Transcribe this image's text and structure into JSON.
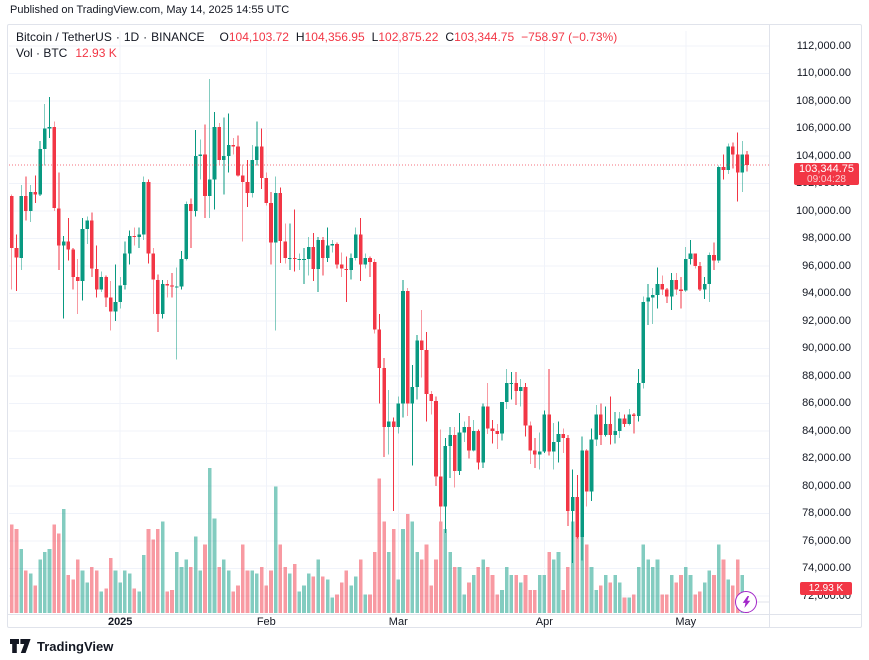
{
  "published_bar": {
    "text": "Published on TradingView.com, May 14, 2025 14:55 UTC"
  },
  "legend": {
    "symbol": "Bitcoin / TetherUS",
    "separator": "·",
    "interval": "1D",
    "exchange": "BINANCE",
    "ohlc": {
      "o": {
        "key": "O",
        "value": "104,103.72"
      },
      "h": {
        "key": "H",
        "value": "104,356.95"
      },
      "l": {
        "key": "L",
        "value": "102,875.22"
      },
      "c": {
        "key": "C",
        "value": "103,344.75"
      }
    },
    "change": "−758.97 (−0.73%)",
    "volume": {
      "label": "Vol · BTC",
      "value": "12.93 K"
    }
  },
  "price_badge": {
    "price": "103,344.75",
    "countdown": "09:04:28"
  },
  "volume_badge": {
    "value": "12.93 K"
  },
  "price_scale": {
    "labels": [
      "112,000.00",
      "110,000.00",
      "108,000.00",
      "106,000.00",
      "104,000.00",
      "102,000.00",
      "100,000.00",
      "98,000.00",
      "96,000.00",
      "94,000.00",
      "92,000.00",
      "90,000.00",
      "88,000.00",
      "86,000.00",
      "84,000.00",
      "82,000.00",
      "80,000.00",
      "78,000.00",
      "76,000.00",
      "74,000.00",
      "72,000.00"
    ]
  },
  "time_scale": {
    "ticks": [
      {
        "index": 23,
        "label": "2025",
        "bold": true
      },
      {
        "index": 54,
        "label": "Feb",
        "bold": false
      },
      {
        "index": 82,
        "label": "Mar",
        "bold": false
      },
      {
        "index": 113,
        "label": "Apr",
        "bold": false
      },
      {
        "index": 143,
        "label": "May",
        "bold": false
      }
    ]
  },
  "footer": {
    "brand": "TradingView"
  },
  "colors": {
    "up": "#089981",
    "down": "#f23645",
    "vol_up": "rgba(8,153,129,0.5)",
    "vol_down": "rgba(242,54,69,0.5)",
    "grid": "#f0f3fa",
    "last_price_line": "rgba(242,54,69,0.7)",
    "badge": "#f23645",
    "text": "#131722",
    "border": "#e0e3eb",
    "flash": "#a227c9"
  },
  "chart_data": {
    "type": "candlestick_with_volume",
    "title": "Bitcoin / TetherUS",
    "exchange": "BINANCE",
    "interval": "1D",
    "start_date": "2024-12-09",
    "end_date": "2025-05-14",
    "price_axis": {
      "min": 72000,
      "max": 112000,
      "step": 2000
    },
    "price_unit": "thousands of USDT",
    "volume_unit": "K BTC",
    "last_close": 103344.75,
    "current_ohlc": {
      "open": 104103.72,
      "high": 104356.95,
      "low": 102875.22,
      "close": 103344.75,
      "change": -758.97,
      "change_pct": -0.73
    },
    "current_volume_k": 12.93,
    "candles": [
      [
        101.1,
        101.2,
        94.3,
        97.3
      ],
      [
        97.3,
        98.3,
        94.2,
        96.6
      ],
      [
        96.6,
        101.9,
        95.7,
        101.1
      ],
      [
        101.1,
        102.5,
        99.3,
        100.0
      ],
      [
        100.0,
        101.9,
        99.2,
        101.4
      ],
      [
        101.4,
        102.6,
        100.6,
        101.2
      ],
      [
        101.2,
        105.1,
        101.1,
        104.5
      ],
      [
        104.5,
        107.8,
        103.3,
        106.0
      ],
      [
        106.0,
        108.3,
        105.3,
        106.1
      ],
      [
        106.1,
        106.5,
        100.0,
        100.2
      ],
      [
        100.2,
        102.8,
        95.7,
        97.5
      ],
      [
        97.5,
        98.2,
        92.2,
        97.8
      ],
      [
        97.8,
        99.5,
        96.4,
        97.2
      ],
      [
        97.2,
        97.3,
        94.3,
        95.2
      ],
      [
        95.2,
        96.5,
        92.5,
        94.9
      ],
      [
        94.9,
        99.5,
        93.5,
        98.7
      ],
      [
        98.7,
        99.6,
        97.6,
        99.3
      ],
      [
        99.3,
        99.9,
        95.2,
        95.8
      ],
      [
        95.8,
        97.5,
        93.7,
        94.3
      ],
      [
        94.3,
        95.6,
        94.1,
        95.2
      ],
      [
        95.2,
        95.3,
        93.0,
        93.7
      ],
      [
        93.7,
        94.9,
        91.3,
        92.7
      ],
      [
        92.7,
        96.1,
        92.0,
        93.4
      ],
      [
        93.4,
        95.2,
        92.9,
        94.6
      ],
      [
        94.6,
        97.8,
        94.3,
        96.9
      ],
      [
        96.9,
        98.6,
        96.1,
        98.2
      ],
      [
        98.2,
        98.8,
        97.5,
        98.1
      ],
      [
        98.1,
        98.8,
        97.3,
        98.3
      ],
      [
        98.3,
        102.5,
        97.9,
        102.1
      ],
      [
        102.1,
        102.3,
        96.2,
        96.9
      ],
      [
        96.9,
        97.3,
        92.5,
        95.0
      ],
      [
        95.0,
        95.4,
        91.2,
        92.5
      ],
      [
        92.5,
        95.0,
        92.2,
        94.7
      ],
      [
        94.7,
        95.0,
        93.7,
        94.6
      ],
      [
        94.6,
        95.5,
        93.7,
        94.5
      ],
      [
        94.5,
        95.9,
        89.2,
        94.5
      ],
      [
        94.5,
        97.1,
        94.3,
        96.5
      ],
      [
        96.5,
        100.7,
        96.4,
        100.5
      ],
      [
        100.5,
        100.9,
        97.3,
        100.0
      ],
      [
        100.0,
        105.9,
        99.6,
        104.0
      ],
      [
        104.0,
        105.2,
        102.3,
        104.1
      ],
      [
        104.1,
        106.3,
        99.5,
        101.1
      ],
      [
        101.1,
        109.6,
        99.5,
        102.3
      ],
      [
        102.3,
        107.2,
        100.1,
        106.1
      ],
      [
        106.1,
        106.4,
        103.4,
        103.7
      ],
      [
        103.7,
        106.8,
        101.2,
        104.0
      ],
      [
        104.0,
        107.1,
        102.8,
        104.8
      ],
      [
        104.8,
        105.3,
        104.1,
        104.7
      ],
      [
        104.7,
        105.5,
        102.5,
        102.6
      ],
      [
        102.6,
        103.4,
        97.8,
        102.1
      ],
      [
        102.1,
        103.7,
        100.3,
        101.3
      ],
      [
        101.3,
        104.8,
        101.0,
        103.7
      ],
      [
        103.7,
        106.5,
        103.3,
        104.7
      ],
      [
        104.7,
        106.0,
        101.6,
        102.4
      ],
      [
        102.4,
        102.8,
        100.4,
        100.6
      ],
      [
        100.6,
        101.4,
        96.1,
        97.7
      ],
      [
        97.7,
        102.5,
        91.3,
        101.3
      ],
      [
        101.3,
        101.7,
        96.2,
        97.8
      ],
      [
        97.8,
        99.1,
        96.2,
        96.6
      ],
      [
        96.6,
        99.1,
        95.7,
        96.6
      ],
      [
        96.6,
        100.1,
        95.6,
        96.5
      ],
      [
        96.5,
        96.9,
        95.7,
        96.5
      ],
      [
        96.5,
        97.3,
        94.7,
        96.5
      ],
      [
        96.5,
        98.1,
        95.3,
        97.4
      ],
      [
        97.4,
        98.4,
        94.9,
        95.8
      ],
      [
        95.8,
        98.1,
        94.1,
        97.9
      ],
      [
        97.9,
        98.1,
        95.3,
        96.6
      ],
      [
        96.6,
        98.8,
        96.3,
        97.5
      ],
      [
        97.5,
        97.9,
        97.0,
        97.6
      ],
      [
        97.6,
        97.7,
        95.8,
        96.1
      ],
      [
        96.1,
        97.0,
        95.2,
        95.8
      ],
      [
        95.8,
        96.7,
        93.4,
        95.7
      ],
      [
        95.7,
        96.9,
        95.0,
        96.6
      ],
      [
        96.6,
        98.8,
        96.4,
        98.3
      ],
      [
        98.3,
        99.5,
        94.9,
        96.1
      ],
      [
        96.1,
        96.9,
        95.8,
        96.6
      ],
      [
        96.6,
        96.7,
        95.2,
        96.3
      ],
      [
        96.3,
        96.5,
        91.1,
        91.4
      ],
      [
        91.4,
        92.5,
        86.0,
        88.6
      ],
      [
        88.6,
        89.3,
        82.1,
        84.3
      ],
      [
        84.3,
        87.0,
        82.3,
        84.7
      ],
      [
        84.7,
        85.0,
        78.2,
        84.3
      ],
      [
        84.3,
        86.5,
        83.8,
        86.0
      ],
      [
        86.0,
        95.0,
        85.0,
        94.2
      ],
      [
        94.2,
        94.4,
        85.1,
        86.0
      ],
      [
        86.0,
        88.8,
        81.5,
        87.2
      ],
      [
        87.2,
        91.0,
        86.3,
        90.6
      ],
      [
        90.6,
        92.8,
        87.9,
        89.9
      ],
      [
        89.9,
        91.2,
        84.7,
        86.7
      ],
      [
        86.7,
        86.9,
        85.2,
        86.2
      ],
      [
        86.2,
        86.5,
        80.0,
        80.7
      ],
      [
        80.7,
        84.1,
        77.4,
        78.5
      ],
      [
        78.5,
        83.5,
        76.6,
        82.9
      ],
      [
        82.9,
        84.3,
        80.6,
        83.7
      ],
      [
        83.7,
        84.3,
        79.9,
        81.1
      ],
      [
        81.1,
        85.3,
        80.8,
        83.9
      ],
      [
        83.9,
        84.7,
        83.2,
        84.3
      ],
      [
        84.3,
        85.1,
        82.0,
        82.6
      ],
      [
        82.6,
        84.8,
        82.5,
        84.0
      ],
      [
        84.0,
        84.1,
        81.2,
        81.7
      ],
      [
        81.7,
        86.0,
        81.3,
        85.8
      ],
      [
        85.8,
        87.5,
        83.8,
        84.2
      ],
      [
        84.2,
        84.8,
        83.1,
        84.0
      ],
      [
        84.0,
        84.5,
        82.7,
        83.8
      ],
      [
        83.8,
        86.1,
        83.3,
        86.1
      ],
      [
        86.1,
        88.5,
        85.6,
        87.5
      ],
      [
        87.5,
        88.3,
        86.3,
        87.5
      ],
      [
        87.5,
        88.3,
        85.9,
        86.9
      ],
      [
        86.9,
        87.8,
        85.8,
        87.2
      ],
      [
        87.2,
        87.5,
        83.6,
        84.4
      ],
      [
        84.4,
        84.7,
        81.6,
        82.6
      ],
      [
        82.6,
        83.5,
        81.3,
        82.3
      ],
      [
        82.3,
        83.9,
        81.2,
        82.5
      ],
      [
        82.5,
        85.5,
        82.4,
        85.2
      ],
      [
        85.2,
        88.5,
        82.2,
        82.5
      ],
      [
        82.5,
        84.6,
        81.2,
        83.2
      ],
      [
        83.2,
        84.7,
        81.7,
        83.8
      ],
      [
        83.8,
        84.2,
        82.4,
        83.5
      ],
      [
        83.5,
        83.7,
        77.1,
        78.2
      ],
      [
        78.2,
        81.2,
        74.4,
        79.2
      ],
      [
        79.2,
        80.8,
        76.2,
        76.3
      ],
      [
        76.3,
        83.6,
        74.6,
        82.6
      ],
      [
        82.6,
        82.7,
        78.5,
        79.6
      ],
      [
        79.6,
        84.2,
        78.9,
        83.4
      ],
      [
        83.4,
        85.9,
        82.9,
        85.2
      ],
      [
        85.2,
        86.0,
        83.0,
        83.7
      ],
      [
        83.7,
        85.8,
        83.6,
        84.5
      ],
      [
        84.5,
        86.5,
        83.0,
        83.7
      ],
      [
        83.7,
        85.4,
        83.1,
        84.0
      ],
      [
        84.0,
        85.4,
        83.5,
        84.9
      ],
      [
        84.9,
        85.2,
        84.3,
        84.5
      ],
      [
        84.5,
        85.6,
        84.4,
        85.2
      ],
      [
        85.2,
        85.3,
        83.8,
        85.1
      ],
      [
        85.1,
        88.5,
        84.7,
        87.5
      ],
      [
        87.5,
        93.8,
        87.1,
        93.4
      ],
      [
        93.4,
        94.7,
        91.7,
        93.7
      ],
      [
        93.7,
        94.4,
        91.8,
        93.9
      ],
      [
        93.9,
        95.9,
        92.9,
        94.7
      ],
      [
        94.7,
        95.3,
        93.9,
        94.3
      ],
      [
        94.3,
        94.4,
        93.3,
        93.8
      ],
      [
        93.8,
        95.5,
        92.8,
        95.0
      ],
      [
        95.0,
        95.5,
        93.9,
        94.3
      ],
      [
        94.3,
        95.2,
        92.9,
        94.2
      ],
      [
        94.2,
        97.4,
        94.1,
        96.5
      ],
      [
        96.5,
        97.9,
        96.1,
        96.9
      ],
      [
        96.9,
        96.9,
        95.8,
        96.0
      ],
      [
        96.0,
        96.3,
        94.2,
        94.3
      ],
      [
        94.3,
        95.2,
        93.6,
        94.7
      ],
      [
        94.7,
        97.0,
        93.4,
        96.8
      ],
      [
        96.8,
        97.7,
        95.7,
        96.4
      ],
      [
        96.4,
        103.3,
        96.2,
        103.2
      ],
      [
        103.2,
        104.1,
        102.3,
        103.0
      ],
      [
        103.0,
        104.9,
        102.7,
        104.7
      ],
      [
        104.7,
        105.0,
        103.1,
        104.1
      ],
      [
        104.1,
        105.7,
        100.7,
        102.8
      ],
      [
        102.8,
        105.1,
        101.4,
        104.1
      ],
      [
        104.104,
        104.357,
        102.875,
        103.345
      ]
    ],
    "volumes_k_btc": [
      58,
      55,
      42,
      28,
      26,
      18,
      35,
      40,
      42,
      58,
      52,
      68,
      25,
      22,
      35,
      28,
      20,
      30,
      28,
      14,
      16,
      36,
      28,
      20,
      28,
      26,
      16,
      14,
      38,
      55,
      48,
      55,
      60,
      14,
      15,
      40,
      30,
      35,
      30,
      50,
      28,
      45,
      95,
      62,
      30,
      35,
      28,
      14,
      18,
      45,
      28,
      28,
      26,
      30,
      18,
      28,
      83,
      45,
      30,
      26,
      32,
      14,
      18,
      26,
      24,
      35,
      24,
      22,
      10,
      12,
      20,
      28,
      18,
      24,
      35,
      12,
      12,
      40,
      88,
      60,
      40,
      55,
      22,
      55,
      65,
      60,
      40,
      35,
      45,
      18,
      35,
      60,
      55,
      40,
      30,
      30,
      12,
      20,
      25,
      30,
      35,
      30,
      25,
      12,
      15,
      30,
      25,
      25,
      20,
      25,
      15,
      15,
      25,
      25,
      40,
      35,
      40,
      15,
      30,
      60,
      50,
      55,
      45,
      30,
      15,
      18,
      25,
      20,
      25,
      20,
      10,
      10,
      12,
      30,
      45,
      35,
      30,
      35,
      12,
      12,
      25,
      20,
      25,
      30,
      25,
      12,
      14,
      20,
      28,
      25,
      45,
      35,
      22,
      18,
      35,
      25,
      12.93
    ]
  }
}
